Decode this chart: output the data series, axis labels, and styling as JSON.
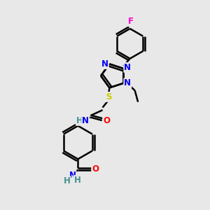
{
  "bg_color": "#e8e8e8",
  "bond_color": "#000000",
  "bond_width": 1.8,
  "atom_colors": {
    "N": "#0000ee",
    "O": "#ff0000",
    "S": "#cccc00",
    "F": "#ff00cc",
    "C": "#000000",
    "H": "#4a9090"
  },
  "font_size_atom": 8.5,
  "font_size_small": 7.5
}
